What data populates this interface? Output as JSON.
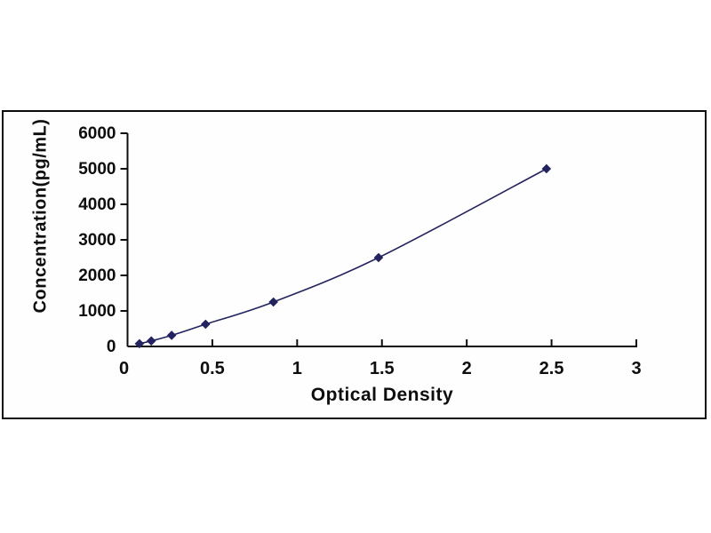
{
  "page": {
    "background_color": "#ffffff",
    "frame_border_color": "#0b0b0b"
  },
  "chart_data": {
    "type": "line",
    "title": "",
    "xlabel": "Optical Density",
    "ylabel": "Concentration(pg/mL)",
    "x": [
      0.07,
      0.14,
      0.26,
      0.46,
      0.86,
      1.48,
      2.47
    ],
    "y": [
      78,
      156,
      312.5,
      625,
      1250,
      2500,
      5000
    ],
    "xlim": [
      0,
      3
    ],
    "ylim": [
      0,
      6000
    ],
    "x_ticks": [
      0.5,
      1,
      1.5,
      2,
      2.5,
      3
    ],
    "x_tick_labels": [
      "0.5",
      "1",
      "1.5",
      "2",
      "2.5",
      "3"
    ],
    "x_origin_label": "0",
    "y_ticks": [
      1000,
      2000,
      3000,
      4000,
      5000,
      6000
    ],
    "y_tick_labels": [
      "1000",
      "2000",
      "3000",
      "4000",
      "5000",
      "6000"
    ],
    "y_origin_label": "0",
    "grid": false,
    "legend": "none",
    "marker": "diamond",
    "series_color": "#23235f",
    "axis_color": "#0d0d0d",
    "line_smooth": true
  }
}
